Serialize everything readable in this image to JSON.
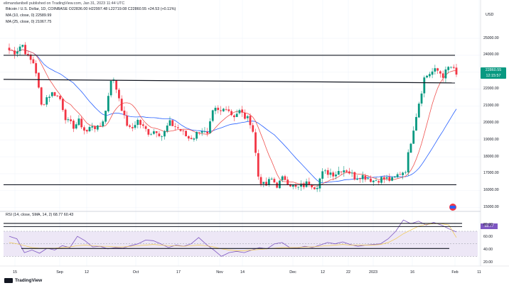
{
  "header": {
    "author": "elimandanibell published on TradingView.com, Jan 31, 2023 11:44 UTC",
    "symbol_line": "Bitcoin / U.S. Dollar, 1D, COINBASE  O22836.00  H22997.48  L22719.08  C22860.55  +24.53 (+0.11%)",
    "ma1": "MA (10, close, 0)  22589.99",
    "ma2": "MA (25, close, 0)  21067.75",
    "currency": "USD"
  },
  "colors": {
    "up": "#089981",
    "down": "#f23645",
    "ma10": "#ef5350",
    "ma25": "#2962ff",
    "rsi": "#7e57c2",
    "rsi_sma": "#f2c94c",
    "rsi_band": "#ede7f6",
    "line": "#131722"
  },
  "price_box": {
    "price": "22860.55",
    "countdown": "12:15:57"
  },
  "rsi_header": "RSI (14, close, SMA, 14, 2)  68.77  60.43",
  "rsi_value_label": "68.77",
  "footer": {
    "brand": "TradingView"
  },
  "chart_data": [
    {
      "type": "candlestick",
      "title": "Bitcoin / U.S. Dollar, 1D, COINBASE",
      "x_ticks": [
        "15",
        "Sep",
        "12",
        "Oct",
        "17",
        "Nov",
        "14",
        "Dec",
        "12",
        "22",
        "2023",
        "16",
        "Feb",
        "11"
      ],
      "y_ticks": [
        "25000.00",
        "24000.00",
        "23000.00",
        "22000.00",
        "21000.00",
        "20000.00",
        "19000.00",
        "18000.00",
        "17000.00",
        "16000.00",
        "15000.00"
      ],
      "ylim": [
        14900,
        25800
      ],
      "series": [
        {
          "name": "MA (10, close, 0)",
          "type": "line",
          "color": "#ef5350"
        },
        {
          "name": "MA (25, close, 0)",
          "type": "line",
          "color": "#2962ff"
        }
      ],
      "horizontal_lines": [
        {
          "value": 24000
        },
        {
          "value": 22450
        },
        {
          "value": 16350
        }
      ],
      "waypoints": [
        24300,
        24200,
        24700,
        23800,
        23500,
        21000,
        21600,
        21800,
        21400,
        20100,
        19800,
        20100,
        19400,
        19900,
        19600,
        20500,
        22800,
        21800,
        20300,
        19500,
        20200,
        19700,
        19400,
        19600,
        19200,
        20000,
        19800,
        19500,
        19100,
        19200,
        19700,
        19200,
        20800,
        20600,
        21000,
        20400,
        20700,
        20300,
        20000,
        16800,
        16200,
        16700,
        16300,
        16800,
        16400,
        16100,
        16300,
        16500,
        16200,
        17000,
        17100,
        17000,
        17300,
        17200,
        16800,
        16900,
        16800,
        16600,
        16700,
        16700,
        16600,
        17000,
        17200,
        19200,
        21000,
        22700,
        23000,
        23100,
        22800,
        23400,
        22860
      ]
    },
    {
      "type": "line",
      "title": "RSI (14, close, SMA, 14, 2)",
      "y_ticks": [
        "80.00",
        "60.00",
        "40.00",
        "20.00"
      ],
      "ylim": [
        18,
        96
      ],
      "band": [
        30,
        70
      ],
      "horizontal_lines": [
        {
          "value": 82.5
        },
        {
          "value": 77.5
        },
        {
          "value": 42.5
        }
      ],
      "series": [
        {
          "name": "RSI",
          "color": "#7e57c2",
          "values": [
            62,
            58,
            36,
            40,
            35,
            43,
            40,
            47,
            44,
            62,
            55,
            45,
            46,
            42,
            44,
            43,
            47,
            50,
            56,
            55,
            50,
            44,
            48,
            46,
            50,
            60,
            49,
            40,
            30,
            36,
            38,
            36,
            40,
            44,
            42,
            50,
            52,
            44,
            43,
            46,
            44,
            48,
            52,
            50,
            53,
            49,
            46,
            48,
            49,
            50,
            58,
            70,
            88,
            82,
            86,
            80,
            84,
            80,
            74,
            69
          ]
        },
        {
          "name": "SMA",
          "color": "#f2c94c",
          "values": [
            52,
            50,
            47,
            44,
            43,
            43,
            43,
            44,
            45,
            47,
            48,
            47,
            46,
            46,
            45,
            45,
            46,
            47,
            48,
            49,
            48,
            47,
            47,
            46,
            47,
            48,
            47,
            45,
            42,
            40,
            39,
            39,
            40,
            41,
            42,
            43,
            44,
            44,
            44,
            45,
            45,
            46,
            47,
            48,
            49,
            48,
            48,
            48,
            48,
            49,
            52,
            58,
            66,
            72,
            78,
            81,
            82,
            82,
            80,
            60
          ]
        }
      ]
    }
  ]
}
